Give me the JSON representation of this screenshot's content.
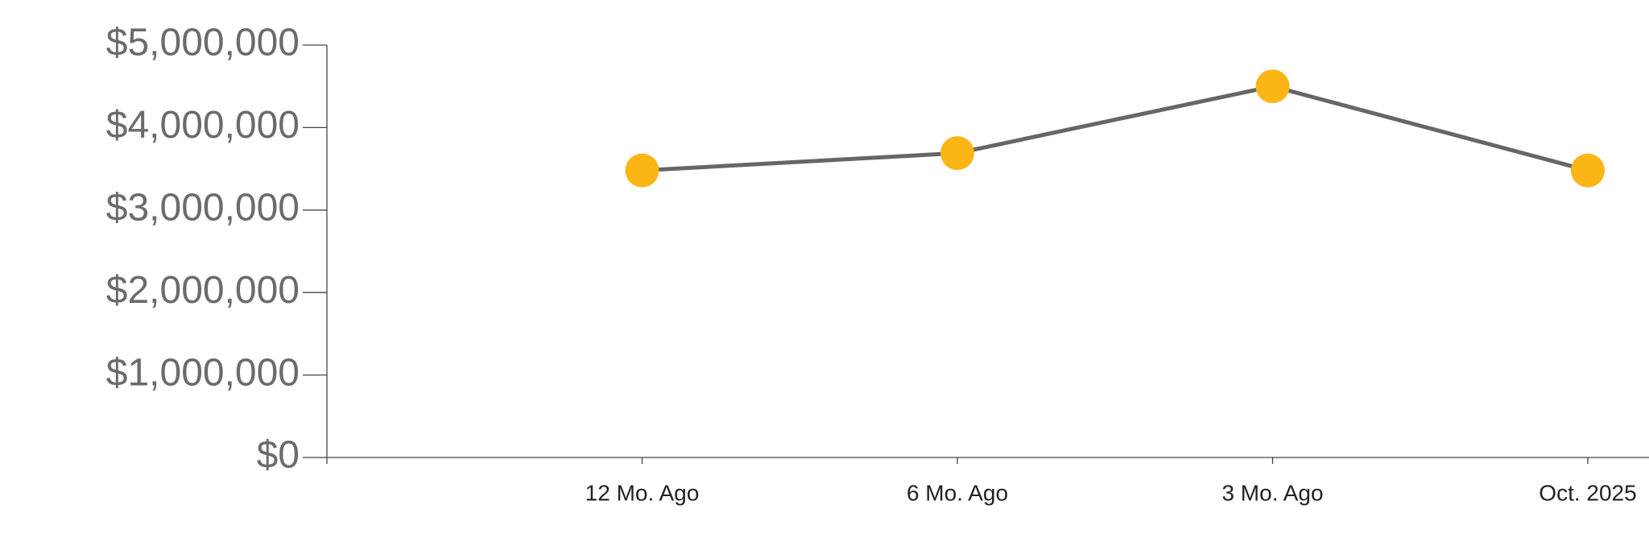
{
  "chart_data": {
    "type": "line",
    "categories": [
      null,
      "12 Mo. Ago",
      "6 Mo. Ago",
      "3 Mo. Ago",
      "Oct. 2025"
    ],
    "series": [
      {
        "values": [
          null,
          3480000,
          3690000,
          4500000,
          3480000
        ],
        "color": "#666666",
        "marker_color": "#fbb515"
      }
    ],
    "ylim": [
      0,
      5000000
    ],
    "yticks": [
      {
        "value": 0,
        "label": "$0"
      },
      {
        "value": 1000000,
        "label": "$1,000,000"
      },
      {
        "value": 2000000,
        "label": "$2,000,000"
      },
      {
        "value": 3000000,
        "label": "$3,000,000"
      },
      {
        "value": 4000000,
        "label": "$4,000,000"
      },
      {
        "value": 5000000,
        "label": "$5,000,000"
      }
    ],
    "grid": false
  }
}
